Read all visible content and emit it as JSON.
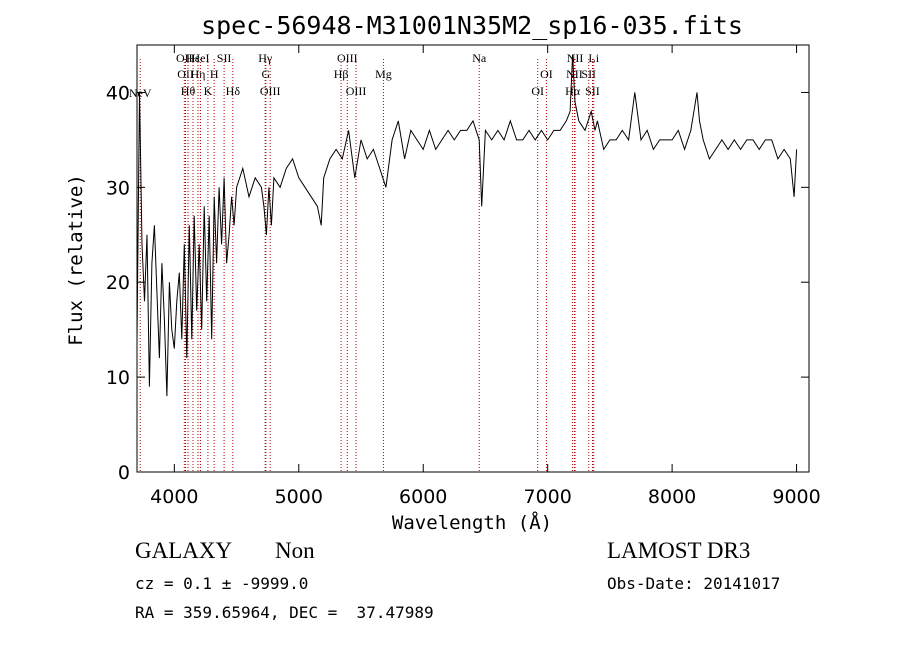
{
  "chart_data": {
    "type": "line",
    "title": "spec-56948-M31001N35M2_sp16-035.fits",
    "xlabel": "Wavelength (Å)",
    "ylabel": "Flux (relative)",
    "xlim": [
      3700,
      9100
    ],
    "ylim": [
      0,
      45
    ],
    "xticks": [
      4000,
      5000,
      6000,
      7000,
      8000,
      9000
    ],
    "yticks": [
      0,
      10,
      20,
      30,
      40
    ],
    "series": [
      {
        "name": "flux",
        "x": [
          3700,
          3720,
          3740,
          3760,
          3780,
          3800,
          3820,
          3840,
          3860,
          3880,
          3900,
          3920,
          3940,
          3960,
          3980,
          4000,
          4020,
          4040,
          4060,
          4080,
          4100,
          4120,
          4140,
          4160,
          4180,
          4200,
          4220,
          4240,
          4260,
          4280,
          4300,
          4320,
          4340,
          4360,
          4380,
          4400,
          4420,
          4440,
          4460,
          4480,
          4500,
          4550,
          4600,
          4650,
          4700,
          4720,
          4740,
          4760,
          4780,
          4800,
          4850,
          4900,
          4950,
          5000,
          5050,
          5100,
          5150,
          5180,
          5200,
          5250,
          5300,
          5350,
          5400,
          5450,
          5500,
          5550,
          5600,
          5650,
          5700,
          5750,
          5800,
          5850,
          5900,
          5950,
          6000,
          6050,
          6100,
          6150,
          6200,
          6250,
          6300,
          6350,
          6400,
          6450,
          6470,
          6500,
          6550,
          6600,
          6650,
          6700,
          6750,
          6800,
          6850,
          6900,
          6950,
          7000,
          7050,
          7100,
          7150,
          7180,
          7200,
          7220,
          7250,
          7300,
          7350,
          7380,
          7400,
          7450,
          7500,
          7550,
          7600,
          7650,
          7680,
          7700,
          7750,
          7800,
          7850,
          7900,
          7950,
          8000,
          8050,
          8100,
          8150,
          8200,
          8220,
          8250,
          8300,
          8350,
          8400,
          8450,
          8500,
          8550,
          8600,
          8650,
          8700,
          8750,
          8800,
          8850,
          8900,
          8950,
          8980,
          9000
        ],
        "y": [
          14,
          40,
          24,
          18,
          25,
          9,
          22,
          26,
          19,
          12,
          22,
          16,
          8,
          20,
          15,
          13,
          18,
          21,
          14,
          24,
          12,
          26,
          14,
          27,
          17,
          24,
          15,
          28,
          18,
          27,
          14,
          29,
          22,
          30,
          24,
          31,
          22,
          25,
          29,
          26,
          30,
          32,
          29,
          31,
          30,
          28,
          25,
          30,
          26,
          31,
          30,
          32,
          33,
          31,
          30,
          29,
          28,
          26,
          31,
          33,
          34,
          33,
          36,
          31,
          35,
          33,
          34,
          32,
          30,
          35,
          37,
          33,
          36,
          35,
          34,
          36,
          34,
          35,
          36,
          35,
          36,
          36,
          37,
          35,
          28,
          36,
          35,
          36,
          35,
          37,
          35,
          35,
          36,
          35,
          36,
          35,
          36,
          36,
          37,
          38,
          44,
          39,
          37,
          36,
          38,
          36,
          37,
          34,
          35,
          35,
          36,
          35,
          38,
          40,
          35,
          36,
          34,
          35,
          35,
          35,
          36,
          34,
          36,
          40,
          37,
          35,
          33,
          34,
          35,
          34,
          35,
          34,
          35,
          35,
          34,
          35,
          35,
          33,
          34,
          33,
          29,
          34
        ]
      }
    ],
    "lines": [
      {
        "label": "NeV",
        "wl": 3726,
        "row": 4
      },
      {
        "label": "OII",
        "wl": 4080,
        "row": 1
      },
      {
        "label": "OII",
        "wl": 4090,
        "row": 2
      },
      {
        "label": "Hθ",
        "wl": 4110,
        "row": 3
      },
      {
        "label": "Hε",
        "wl": 4150,
        "row": 1
      },
      {
        "label": "Hη",
        "wl": 4190,
        "row": 2
      },
      {
        "label": "HeI",
        "wl": 4210,
        "row": 1
      },
      {
        "label": "K",
        "wl": 4270,
        "row": 3
      },
      {
        "label": "H",
        "wl": 4320,
        "row": 2
      },
      {
        "label": "SII",
        "wl": 4400,
        "row": 1
      },
      {
        "label": "Hδ",
        "wl": 4470,
        "row": 3
      },
      {
        "label": "Hγ",
        "wl": 4730,
        "row": 1
      },
      {
        "label": "G",
        "wl": 4735,
        "row": 2
      },
      {
        "label": "OIII",
        "wl": 4770,
        "row": 3
      },
      {
        "label": "Hβ",
        "wl": 5340,
        "row": 2
      },
      {
        "label": "OIII",
        "wl": 5390,
        "row": 1
      },
      {
        "label": "OIII",
        "wl": 5460,
        "row": 3
      },
      {
        "label": "Mg",
        "wl": 5680,
        "row": 2
      },
      {
        "label": "Na",
        "wl": 6450,
        "row": 1
      },
      {
        "label": "OI",
        "wl": 6990,
        "row": 2
      },
      {
        "label": "OI",
        "wl": 6920,
        "row": 3
      },
      {
        "label": "NII",
        "wl": 7220,
        "row": 1
      },
      {
        "label": "NII",
        "wl": 7215,
        "row": 2
      },
      {
        "label": "Hα",
        "wl": 7200,
        "row": 3
      },
      {
        "label": "Li",
        "wl": 7370,
        "row": 1
      },
      {
        "label": "SII",
        "wl": 7330,
        "row": 2
      },
      {
        "label": "SII",
        "wl": 7360,
        "row": 3
      }
    ]
  },
  "info": {
    "class_label": "GALAXY",
    "subclass_label": "Non",
    "survey_label": "LAMOST DR3",
    "cz_line": "cz = 0.1 ± -9999.0",
    "obs_date_line": "Obs-Date: 20141017",
    "coords_line": "RA = 359.65964, DEC =  37.47989"
  }
}
